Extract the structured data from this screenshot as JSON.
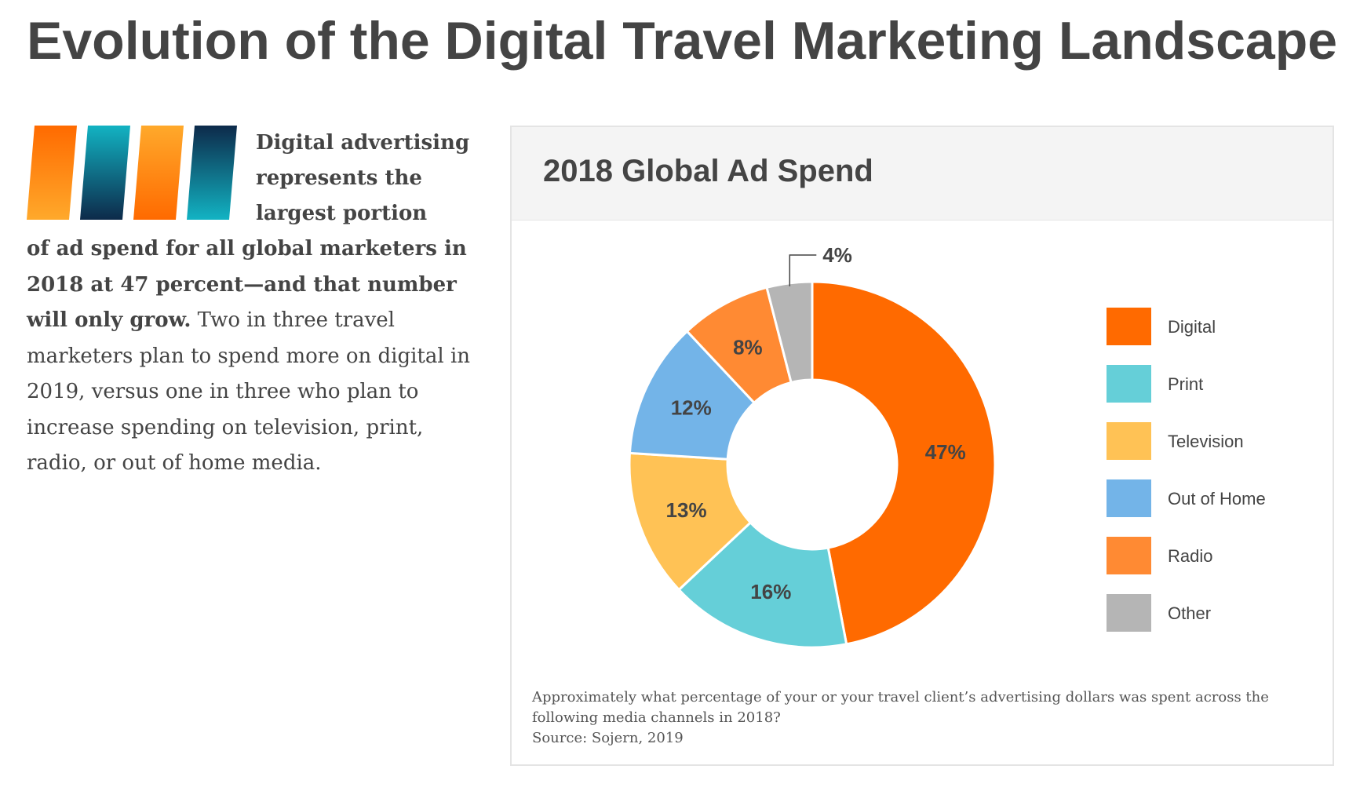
{
  "page": {
    "title": "Evolution of the Digital Travel Marketing Landscape"
  },
  "intro": {
    "bold_heading": "Digital advertising represents the largest portion",
    "bold_continuation": "of ad spend for all global marketers in 2018 at 47 percent—and that number will only grow.",
    "body": " Two in three travel marketers plan to spend more on digital in 2019, versus one in three who plan to increase spending on television, print, radio, or out of home media."
  },
  "decor": {
    "stripes": [
      {
        "name": "orange-stripe",
        "colors": [
          "#ff6a00",
          "#ffa92b"
        ]
      },
      {
        "name": "teal-stripe",
        "colors": [
          "#12b3c3",
          "#0d2a4a"
        ]
      },
      {
        "name": "orange-stripe",
        "colors": [
          "#ffa92b",
          "#ff6a00"
        ]
      },
      {
        "name": "navy-stripe",
        "colors": [
          "#0d2a4a",
          "#12b3c3"
        ]
      }
    ]
  },
  "chart_data": {
    "type": "pie",
    "title": "2018 Global Ad Spend",
    "donut": true,
    "categories": [
      "Digital",
      "Print",
      "Television",
      "Out of Home",
      "Radio",
      "Other"
    ],
    "values": [
      47,
      16,
      13,
      12,
      8,
      4
    ],
    "value_labels": [
      "47%",
      "16%",
      "13%",
      "12%",
      "8%",
      "4%"
    ],
    "colors": [
      "#ff6a00",
      "#65cfd8",
      "#ffc255",
      "#73b4e8",
      "#ff8a33",
      "#b5b5b5"
    ],
    "legend": "right",
    "note_question": "Approximately what percentage of your or your travel client’s advertising dollars was spent across the following media channels in 2018?",
    "source": "Source: Sojern, 2019"
  }
}
